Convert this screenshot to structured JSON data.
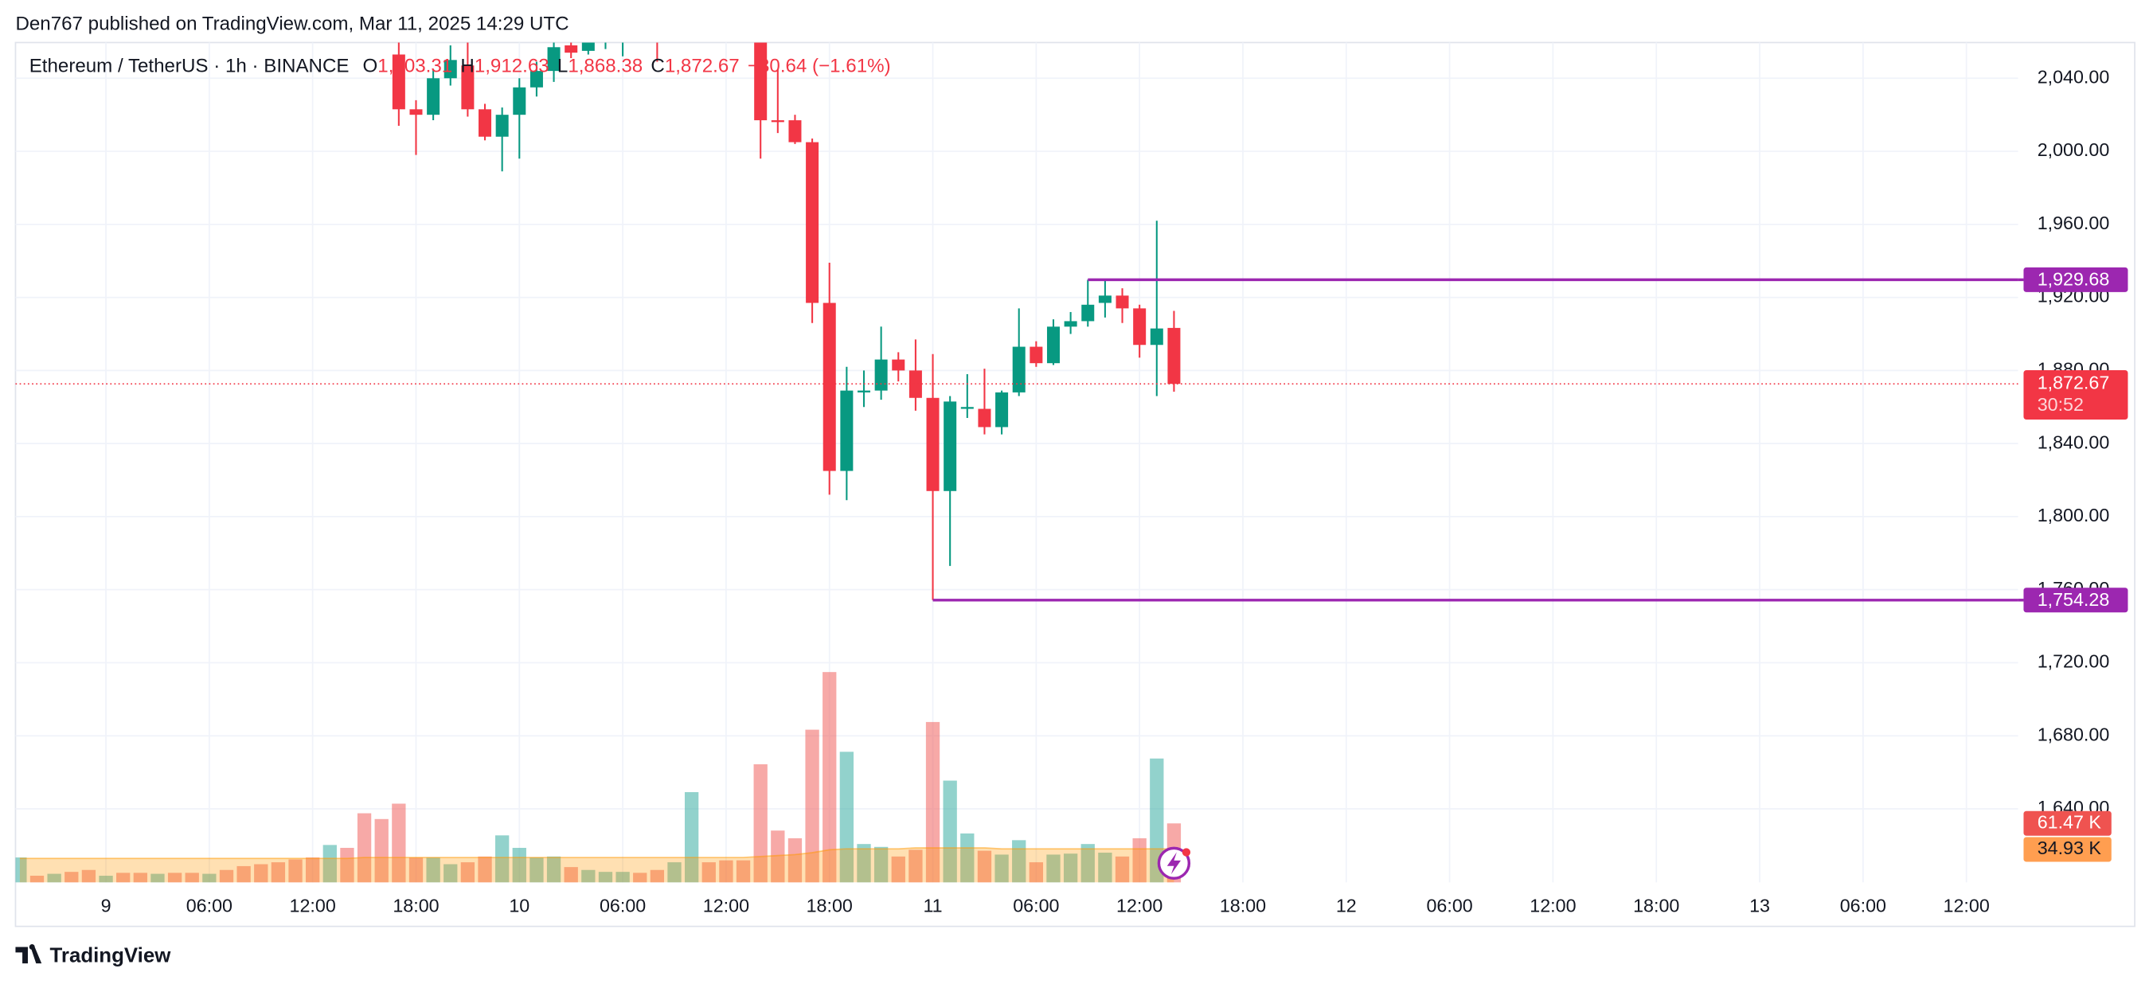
{
  "header": {
    "publisher": "Den767 published on TradingView.com, Mar 11, 2025 14:29 UTC"
  },
  "footer": {
    "brand": "TradingView"
  },
  "chart_data": {
    "type": "candlestick",
    "title": "Ethereum / TetherUS · 1h · BINANCE",
    "ohlc_legend": {
      "o": "O",
      "open": "1,903.31",
      "h": "H",
      "high": "1,912.63",
      "l": "L",
      "low": "1,868.38",
      "c": "C",
      "close": "1,872.67",
      "change": "−30.64 (−1.61%)"
    },
    "x": [
      "2025-03-09T17:00",
      "2025-03-09T18:00",
      "2025-03-09T19:00",
      "2025-03-09T20:00",
      "2025-03-09T21:00",
      "2025-03-09T22:00",
      "2025-03-09T23:00",
      "2025-03-10T00:00",
      "2025-03-10T01:00",
      "2025-03-10T02:00",
      "2025-03-10T03:00",
      "2025-03-10T04:00",
      "2025-03-10T05:00",
      "2025-03-10T06:00",
      "2025-03-10T07:00",
      "2025-03-10T08:00",
      "2025-03-10T09:00",
      "2025-03-10T10:00",
      "2025-03-10T11:00",
      "2025-03-10T12:00",
      "2025-03-10T13:00",
      "2025-03-10T14:00",
      "2025-03-10T15:00",
      "2025-03-10T16:00",
      "2025-03-10T17:00",
      "2025-03-10T18:00",
      "2025-03-10T19:00",
      "2025-03-10T20:00",
      "2025-03-10T21:00",
      "2025-03-10T22:00",
      "2025-03-10T23:00",
      "2025-03-11T00:00",
      "2025-03-11T01:00",
      "2025-03-11T02:00",
      "2025-03-11T03:00",
      "2025-03-11T04:00",
      "2025-03-11T05:00",
      "2025-03-11T06:00",
      "2025-03-11T07:00",
      "2025-03-11T08:00",
      "2025-03-11T09:00",
      "2025-03-11T10:00",
      "2025-03-11T11:00",
      "2025-03-11T12:00",
      "2025-03-11T13:00",
      "2025-03-11T14:00"
    ],
    "open": [
      2053,
      2023,
      2020,
      2040,
      2047,
      2023,
      2008,
      2020,
      2035,
      2044,
      2058,
      2055,
      2061,
      2060,
      null,
      2070,
      null,
      null,
      null,
      null,
      null,
      2064,
      2017,
      2017,
      2005,
      1917,
      1825,
      1868,
      1869,
      1886,
      1880,
      1865,
      1814,
      1859,
      1859,
      1849,
      1868,
      1893,
      1884,
      1904,
      1907,
      1917,
      1921,
      1914,
      1894,
      1903.31
    ],
    "high": [
      2065,
      2028,
      2045,
      2058,
      2060,
      2026,
      2024,
      2040,
      2049,
      2062,
      2066,
      2066,
      2070,
      2070,
      null,
      2075,
      null,
      null,
      null,
      null,
      null,
      2075,
      2045,
      2020,
      2007,
      1939,
      1882,
      1880,
      1904,
      1890,
      1897,
      1889,
      1866,
      1878,
      1881,
      1869,
      1914,
      1896,
      1908,
      1912,
      1929.68,
      1929,
      1925,
      1916,
      1962,
      1912.63
    ],
    "low": [
      2014,
      1998,
      2017,
      2036,
      2019,
      2006,
      1989,
      1996,
      2030,
      2038,
      2051,
      2053,
      2056,
      2052,
      null,
      2049,
      null,
      null,
      null,
      null,
      null,
      1996,
      2010,
      2004,
      1906,
      1812,
      1809,
      1860,
      1864,
      1874,
      1858,
      1754.28,
      1773,
      1854,
      1845,
      1845,
      1866,
      1882,
      1883,
      1900,
      1904,
      1909,
      1906,
      1887,
      1866,
      1868.38
    ],
    "close": [
      2023,
      2020,
      2040,
      2050,
      2023,
      2008,
      2020,
      2035,
      2044,
      2057,
      2054,
      2061,
      2065,
      2066,
      null,
      2062,
      null,
      null,
      null,
      null,
      null,
      2017,
      2016,
      2005,
      1917,
      1825,
      1869,
      1869,
      1886,
      1880,
      1865,
      1814,
      1863,
      1860,
      1849,
      1868,
      1893,
      1884,
      1904,
      1907,
      1916,
      1921,
      1914,
      1894,
      1903,
      1872.67
    ],
    "up_color": "#089981",
    "down_color": "#f23645",
    "xlim": [
      "2025-03-08T18:45",
      "2025-03-13T15:00"
    ],
    "xticks": [
      {
        "value": "2025-03-09T00:00",
        "label": "9"
      },
      {
        "value": "2025-03-09T06:00",
        "label": "06:00"
      },
      {
        "value": "2025-03-09T12:00",
        "label": "12:00"
      },
      {
        "value": "2025-03-09T18:00",
        "label": "18:00"
      },
      {
        "value": "2025-03-10T00:00",
        "label": "10"
      },
      {
        "value": "2025-03-10T06:00",
        "label": "06:00"
      },
      {
        "value": "2025-03-10T12:00",
        "label": "12:00"
      },
      {
        "value": "2025-03-10T18:00",
        "label": "18:00"
      },
      {
        "value": "2025-03-11T00:00",
        "label": "11"
      },
      {
        "value": "2025-03-11T06:00",
        "label": "06:00"
      },
      {
        "value": "2025-03-11T12:00",
        "label": "12:00"
      },
      {
        "value": "2025-03-11T18:00",
        "label": "18:00"
      },
      {
        "value": "2025-03-12T00:00",
        "label": "12"
      },
      {
        "value": "2025-03-12T06:00",
        "label": "06:00"
      },
      {
        "value": "2025-03-12T12:00",
        "label": "12:00"
      },
      {
        "value": "2025-03-12T18:00",
        "label": "18:00"
      },
      {
        "value": "2025-03-13T00:00",
        "label": "13"
      },
      {
        "value": "2025-03-13T06:00",
        "label": "06:00"
      },
      {
        "value": "2025-03-13T12:00",
        "label": "12:00"
      }
    ],
    "ylim": [
      1600,
      2060
    ],
    "yticks": [
      {
        "value": 1640,
        "label": "1,640.00"
      },
      {
        "value": 1680,
        "label": "1,680.00"
      },
      {
        "value": 1720,
        "label": "1,720.00"
      },
      {
        "value": 1760,
        "label": "1,760.00"
      },
      {
        "value": 1800,
        "label": "1,800.00"
      },
      {
        "value": 1840,
        "label": "1,840.00"
      },
      {
        "value": 1880,
        "label": "1,880.00"
      },
      {
        "value": 1920,
        "label": "1,920.00"
      },
      {
        "value": 1960,
        "label": "1,960.00"
      },
      {
        "value": 2000,
        "label": "2,000.00"
      },
      {
        "value": 2040,
        "label": "2,040.00"
      }
    ],
    "grid": true,
    "levels": [
      {
        "value": 1929.68,
        "label": "1,929.68",
        "start": "2025-03-11T09:00"
      },
      {
        "value": 1754.28,
        "label": "1,754.28",
        "start": "2025-03-11T00:00"
      }
    ],
    "level_color": "#9c27b0",
    "last_price": {
      "value": 1872.67,
      "label": "1,872.67",
      "countdown": "30:52"
    },
    "volume": {
      "x": [
        "2025-03-08T19:00",
        "2025-03-08T20:00",
        "2025-03-08T21:00",
        "2025-03-08T22:00",
        "2025-03-08T23:00",
        "2025-03-09T00:00",
        "2025-03-09T01:00",
        "2025-03-09T02:00",
        "2025-03-09T03:00",
        "2025-03-09T04:00",
        "2025-03-09T05:00",
        "2025-03-09T06:00",
        "2025-03-09T07:00",
        "2025-03-09T08:00",
        "2025-03-09T09:00",
        "2025-03-09T10:00",
        "2025-03-09T11:00",
        "2025-03-09T12:00",
        "2025-03-09T13:00",
        "2025-03-09T14:00",
        "2025-03-09T15:00",
        "2025-03-09T16:00",
        "2025-03-09T17:00",
        "2025-03-09T18:00",
        "2025-03-09T19:00",
        "2025-03-09T20:00",
        "2025-03-09T21:00",
        "2025-03-09T22:00",
        "2025-03-09T23:00",
        "2025-03-10T00:00",
        "2025-03-10T01:00",
        "2025-03-10T02:00",
        "2025-03-10T03:00",
        "2025-03-10T04:00",
        "2025-03-10T05:00",
        "2025-03-10T06:00",
        "2025-03-10T07:00",
        "2025-03-10T08:00",
        "2025-03-10T09:00",
        "2025-03-10T10:00",
        "2025-03-10T11:00",
        "2025-03-10T12:00",
        "2025-03-10T13:00",
        "2025-03-10T14:00",
        "2025-03-10T15:00",
        "2025-03-10T16:00",
        "2025-03-10T17:00",
        "2025-03-10T18:00",
        "2025-03-10T19:00",
        "2025-03-10T20:00",
        "2025-03-10T21:00",
        "2025-03-10T22:00",
        "2025-03-10T23:00",
        "2025-03-11T00:00",
        "2025-03-11T01:00",
        "2025-03-11T02:00",
        "2025-03-11T03:00",
        "2025-03-11T04:00",
        "2025-03-11T05:00",
        "2025-03-11T06:00",
        "2025-03-11T07:00",
        "2025-03-11T08:00",
        "2025-03-11T09:00",
        "2025-03-11T10:00",
        "2025-03-11T11:00",
        "2025-03-11T12:00",
        "2025-03-11T13:00",
        "2025-03-11T14:00"
      ],
      "values": [
        26,
        7,
        9,
        11,
        13,
        7,
        10,
        10,
        9,
        10,
        10,
        9,
        13,
        17,
        19,
        21,
        24,
        26,
        39,
        36,
        72,
        66,
        82,
        26,
        26,
        19,
        21,
        27,
        49,
        36,
        26,
        27,
        16,
        13,
        11,
        11,
        10,
        13,
        21,
        94,
        21,
        23,
        23,
        123,
        54,
        46,
        159,
        219,
        136,
        40,
        37,
        27,
        34,
        167,
        106,
        51,
        33,
        29,
        44,
        21,
        29,
        30,
        40,
        31,
        27,
        46,
        129,
        61.47
      ],
      "directions": [
        "up",
        "down",
        "up",
        "down",
        "down",
        "up",
        "down",
        "down",
        "up",
        "down",
        "down",
        "up",
        "down",
        "down",
        "down",
        "down",
        "down",
        "down",
        "up",
        "down",
        "down",
        "down",
        "down",
        "down",
        "up",
        "up",
        "down",
        "down",
        "up",
        "up",
        "up",
        "up",
        "down",
        "up",
        "up",
        "up",
        "down",
        "down",
        "up",
        "up",
        "down",
        "down",
        "down",
        "down",
        "down",
        "down",
        "down",
        "down",
        "up",
        "up",
        "up",
        "down",
        "down",
        "down",
        "up",
        "up",
        "down",
        "up",
        "up",
        "down",
        "up",
        "up",
        "up",
        "up",
        "down",
        "down",
        "up",
        "down"
      ],
      "up_color": "#26a69a",
      "down_color": "#ef5350",
      "ylim": [
        0,
        250
      ],
      "last_label": "61.47 K",
      "ma": {
        "values": [
          25,
          25,
          25,
          25,
          25,
          25,
          25,
          25,
          25,
          25,
          25,
          25,
          25,
          25,
          25,
          25,
          25,
          25,
          25,
          25,
          26,
          26,
          26,
          26,
          26,
          26,
          26,
          26,
          26,
          26,
          26,
          26,
          26,
          26,
          26,
          26,
          26,
          26,
          26,
          26,
          26,
          26,
          26,
          27,
          28,
          29,
          31,
          34,
          35,
          35,
          35,
          35,
          36,
          36,
          36,
          36,
          36,
          35,
          35,
          35,
          35,
          35,
          35,
          35,
          35,
          35,
          35,
          34.93
        ],
        "color": "#ff9800",
        "last_label": "34.93 K"
      }
    }
  }
}
